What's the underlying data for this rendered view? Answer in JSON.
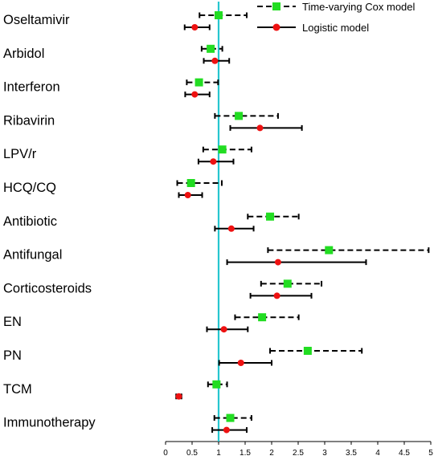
{
  "chart_data": {
    "type": "forest",
    "title": "",
    "xlabel": "",
    "ylabel": "",
    "xlim": [
      0,
      5
    ],
    "x_ticks": [
      "0",
      "0.5",
      "1",
      "1.5",
      "2",
      "2.5",
      "3",
      "3.5",
      "4",
      "4.5",
      "5"
    ],
    "reference_line": 1,
    "legend_position": "top-right",
    "categories": [
      "Oseltamivir",
      "Arbidol",
      "Interferon",
      "Ribavirin",
      "LPV/r",
      "HCQ/CQ",
      "Antibiotic",
      "Antifungal",
      "Corticosteroids",
      "EN",
      "PN",
      "TCM",
      "Immunotherapy"
    ],
    "series": [
      {
        "name": "Time-varying Cox model",
        "style": "dashed",
        "marker": "square",
        "color": "#22dd22",
        "points": [
          {
            "est": 1.0,
            "lo": 0.64,
            "hi": 1.53
          },
          {
            "est": 0.85,
            "lo": 0.68,
            "hi": 1.07
          },
          {
            "est": 0.63,
            "lo": 0.4,
            "hi": 0.99
          },
          {
            "est": 1.38,
            "lo": 0.93,
            "hi": 2.12
          },
          {
            "est": 1.07,
            "lo": 0.71,
            "hi": 1.62
          },
          {
            "est": 0.48,
            "lo": 0.22,
            "hi": 1.06
          },
          {
            "est": 1.97,
            "lo": 1.55,
            "hi": 2.51
          },
          {
            "est": 3.08,
            "lo": 1.93,
            "hi": 4.96
          },
          {
            "est": 2.3,
            "lo": 1.8,
            "hi": 2.94
          },
          {
            "est": 1.82,
            "lo": 1.31,
            "hi": 2.51
          },
          {
            "est": 2.68,
            "lo": 1.97,
            "hi": 3.7
          },
          {
            "est": 0.96,
            "lo": 0.8,
            "hi": 1.16
          },
          {
            "est": 1.22,
            "lo": 0.92,
            "hi": 1.62
          }
        ]
      },
      {
        "name": "Logistic model",
        "style": "solid",
        "marker": "circle",
        "color": "#ee1111",
        "points": [
          {
            "est": 0.55,
            "lo": 0.36,
            "hi": 0.83
          },
          {
            "est": 0.93,
            "lo": 0.72,
            "hi": 1.2
          },
          {
            "est": 0.55,
            "lo": 0.37,
            "hi": 0.83
          },
          {
            "est": 1.78,
            "lo": 1.22,
            "hi": 2.57
          },
          {
            "est": 0.9,
            "lo": 0.62,
            "hi": 1.28
          },
          {
            "est": 0.42,
            "lo": 0.25,
            "hi": 0.69
          },
          {
            "est": 1.24,
            "lo": 0.93,
            "hi": 1.66
          },
          {
            "est": 2.12,
            "lo": 1.16,
            "hi": 3.78
          },
          {
            "est": 2.1,
            "lo": 1.6,
            "hi": 2.75
          },
          {
            "est": 1.1,
            "lo": 0.78,
            "hi": 1.55
          },
          {
            "est": 1.42,
            "lo": 1.01,
            "hi": 2.0
          },
          {
            "est": 0.25,
            "lo": 0.2,
            "hi": 0.3
          },
          {
            "est": 1.15,
            "lo": 0.88,
            "hi": 1.53
          }
        ]
      }
    ],
    "colors": {
      "reference_line": "#26c6cf",
      "axis": "#000000"
    }
  }
}
